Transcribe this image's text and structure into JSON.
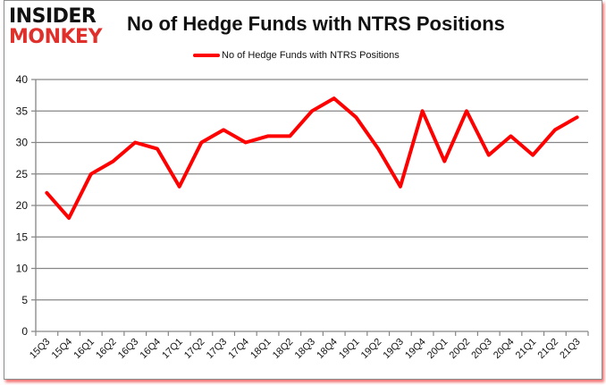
{
  "logo": {
    "line1": "INSIDER",
    "line2": "MONKEY"
  },
  "chart_data": {
    "type": "line",
    "title": "No of Hedge Funds with NTRS Positions",
    "xlabel": "",
    "ylabel": "",
    "ylim": [
      0,
      40
    ],
    "yticks": [
      0,
      5,
      10,
      15,
      20,
      25,
      30,
      35,
      40
    ],
    "grid": true,
    "legend_position": "top",
    "categories": [
      "15Q3",
      "15Q4",
      "16Q1",
      "16Q2",
      "16Q3",
      "16Q4",
      "17Q1",
      "17Q2",
      "17Q3",
      "17Q4",
      "18Q1",
      "18Q2",
      "18Q3",
      "18Q4",
      "19Q1",
      "19Q2",
      "19Q3",
      "19Q4",
      "20Q1",
      "20Q2",
      "20Q3",
      "20Q4",
      "21Q1",
      "21Q2",
      "21Q3"
    ],
    "series": [
      {
        "name": "No of Hedge Funds with NTRS Positions",
        "color": "#ff0000",
        "values": [
          22,
          18,
          25,
          27,
          30,
          29,
          23,
          30,
          32,
          30,
          31,
          31,
          35,
          37,
          34,
          29,
          23,
          35,
          27,
          35,
          28,
          31,
          28,
          32,
          34
        ]
      }
    ]
  },
  "colors": {
    "line": "#ff0000",
    "grid": "#868686",
    "logo_accent": "#e0302b"
  }
}
